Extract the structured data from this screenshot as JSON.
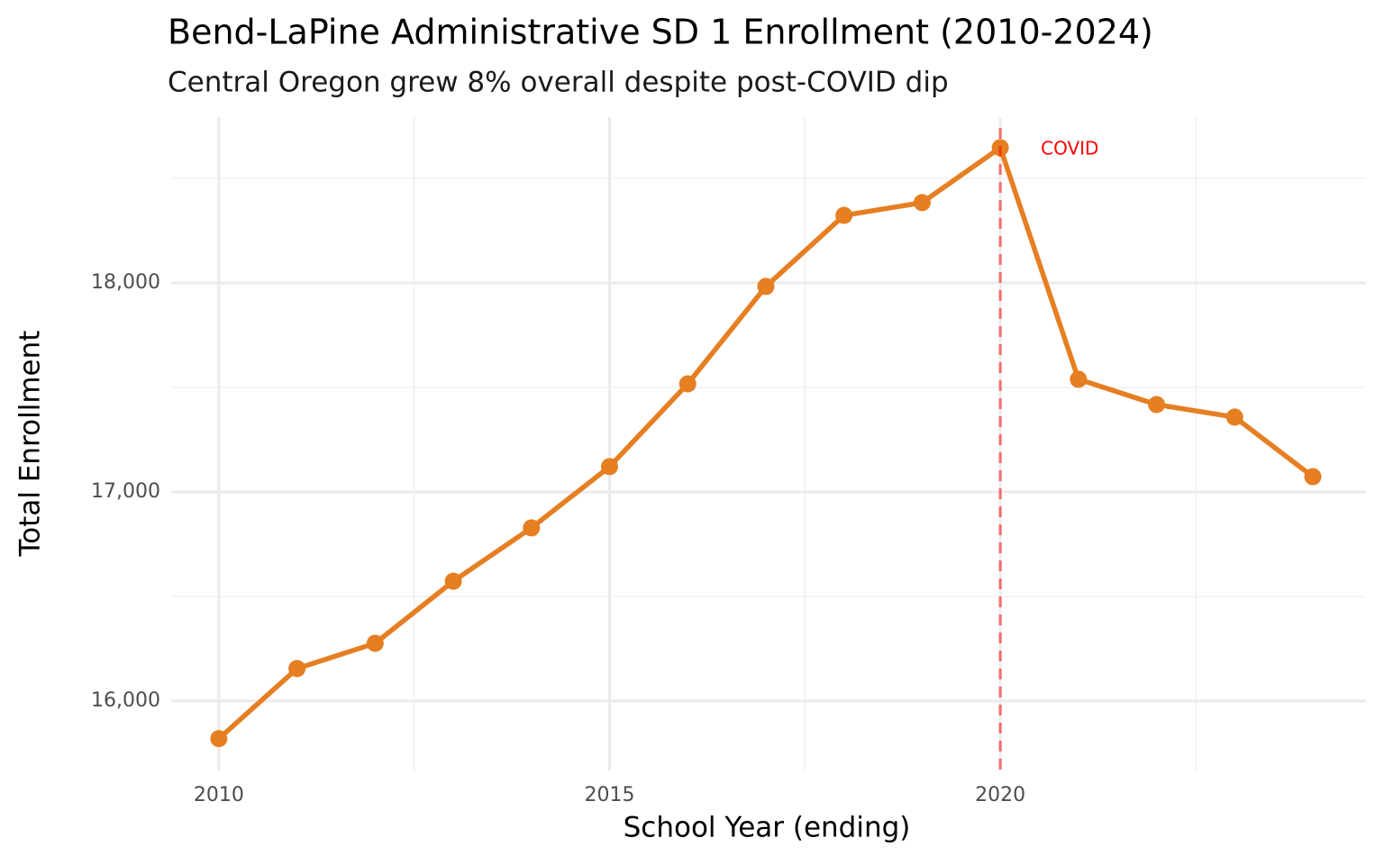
{
  "chart_data": {
    "type": "line",
    "title": "Bend-LaPine Administrative SD 1 Enrollment (2010-2024)",
    "subtitle": "Central Oregon grew 8% overall despite post-COVID dip",
    "x_label": "School Year (ending)",
    "y_label": "Total Enrollment",
    "x": [
      2010,
      2011,
      2012,
      2013,
      2014,
      2015,
      2016,
      2017,
      2018,
      2019,
      2020,
      2021,
      2022,
      2023,
      2024
    ],
    "series": [
      {
        "name": "Total Enrollment",
        "color": "#e67e22",
        "values": [
          15820,
          16155,
          16276,
          16573,
          16828,
          17121,
          17517,
          17983,
          18323,
          18384,
          18647,
          17539,
          17418,
          17358,
          17073
        ]
      }
    ],
    "xlim": [
      2009.39,
      2024.68
    ],
    "xticks": [
      2010,
      2015,
      2020
    ],
    "ylim": [
      15668,
      18793
    ],
    "yticks": [
      {
        "value": 16000,
        "label": "16,000"
      },
      {
        "value": 17000,
        "label": "17,000"
      },
      {
        "value": 18000,
        "label": "18,000"
      }
    ],
    "grid": true,
    "annotations": [
      {
        "x": 2020,
        "text": "COVID",
        "color": "#ff0000"
      }
    ]
  }
}
